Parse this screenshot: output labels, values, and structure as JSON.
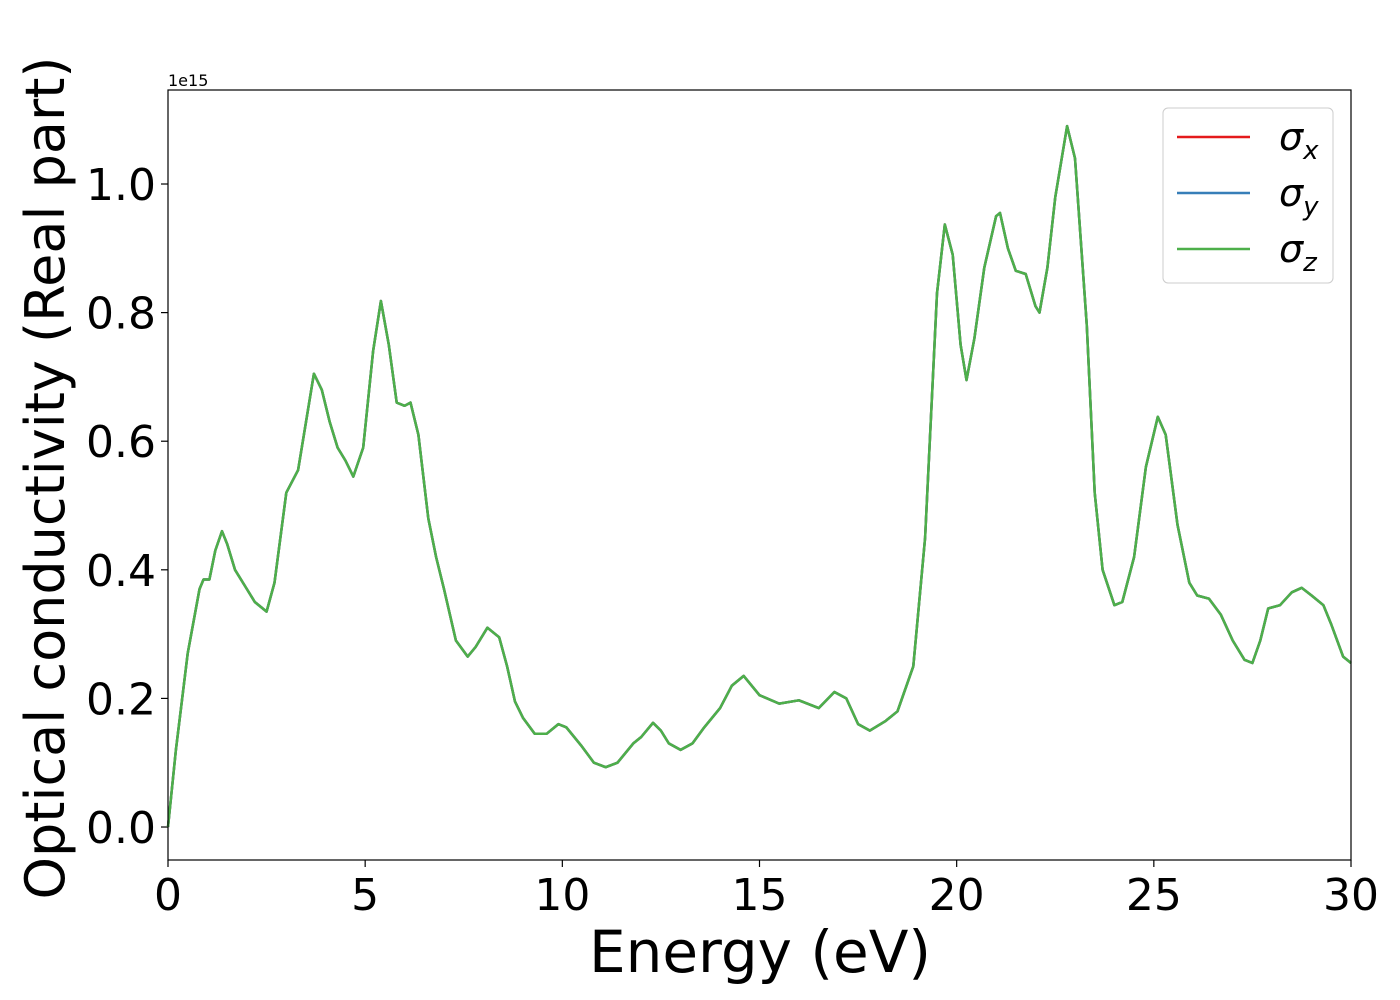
{
  "chart_data": {
    "type": "line",
    "xlabel": "Energy (eV)",
    "ylabel": "Optical conductivity (Real part)",
    "offset_label": "1e15",
    "x": [
      0,
      0.2,
      0.5,
      0.8,
      0.9,
      1.05,
      1.2,
      1.37,
      1.5,
      1.7,
      2.0,
      2.2,
      2.5,
      2.7,
      3.0,
      3.3,
      3.5,
      3.7,
      3.9,
      4.1,
      4.3,
      4.5,
      4.7,
      4.95,
      5.2,
      5.4,
      5.6,
      5.8,
      6.0,
      6.15,
      6.35,
      6.6,
      6.8,
      7.0,
      7.3,
      7.6,
      7.8,
      8.1,
      8.4,
      8.6,
      8.8,
      9.0,
      9.3,
      9.6,
      9.9,
      10.1,
      10.5,
      10.8,
      11.1,
      11.4,
      11.8,
      12.0,
      12.3,
      12.5,
      12.7,
      13.0,
      13.3,
      13.6,
      14.0,
      14.3,
      14.6,
      14.8,
      15.0,
      15.5,
      16.0,
      16.5,
      16.9,
      17.2,
      17.5,
      17.8,
      18.2,
      18.5,
      18.9,
      19.2,
      19.5,
      19.7,
      19.9,
      20.1,
      20.25,
      20.45,
      20.7,
      21.0,
      21.1,
      21.3,
      21.5,
      21.75,
      22.0,
      22.1,
      22.3,
      22.5,
      22.8,
      23.0,
      23.3,
      23.5,
      23.7,
      24.0,
      24.2,
      24.5,
      24.8,
      25.1,
      25.3,
      25.6,
      25.9,
      26.1,
      26.4,
      26.7,
      27.0,
      27.3,
      27.5,
      27.7,
      27.9,
      28.2,
      28.5,
      28.75,
      29.0,
      29.3,
      29.5,
      29.8,
      30.0
    ],
    "series": [
      {
        "name": "σx",
        "color": "#e41a1c",
        "values": [
          0,
          0.12,
          0.27,
          0.37,
          0.385,
          0.385,
          0.43,
          0.46,
          0.44,
          0.4,
          0.37,
          0.35,
          0.335,
          0.38,
          0.52,
          0.555,
          0.63,
          0.705,
          0.68,
          0.63,
          0.59,
          0.57,
          0.545,
          0.59,
          0.74,
          0.818,
          0.75,
          0.66,
          0.655,
          0.66,
          0.61,
          0.48,
          0.42,
          0.37,
          0.29,
          0.265,
          0.28,
          0.31,
          0.295,
          0.25,
          0.195,
          0.17,
          0.145,
          0.145,
          0.16,
          0.155,
          0.125,
          0.1,
          0.093,
          0.1,
          0.13,
          0.14,
          0.162,
          0.15,
          0.13,
          0.12,
          0.13,
          0.155,
          0.185,
          0.22,
          0.235,
          0.22,
          0.205,
          0.192,
          0.197,
          0.185,
          0.21,
          0.2,
          0.16,
          0.15,
          0.165,
          0.18,
          0.25,
          0.45,
          0.83,
          0.937,
          0.89,
          0.75,
          0.695,
          0.76,
          0.87,
          0.95,
          0.955,
          0.9,
          0.865,
          0.86,
          0.81,
          0.8,
          0.87,
          0.98,
          1.09,
          1.04,
          0.78,
          0.52,
          0.4,
          0.345,
          0.35,
          0.42,
          0.56,
          0.638,
          0.61,
          0.47,
          0.38,
          0.36,
          0.355,
          0.33,
          0.29,
          0.26,
          0.255,
          0.29,
          0.34,
          0.345,
          0.365,
          0.372,
          0.36,
          0.345,
          0.315,
          0.265,
          0.255
        ]
      },
      {
        "name": "σy",
        "color": "#377eb8",
        "values": [
          0,
          0.12,
          0.27,
          0.37,
          0.385,
          0.385,
          0.43,
          0.46,
          0.44,
          0.4,
          0.37,
          0.35,
          0.335,
          0.38,
          0.52,
          0.555,
          0.63,
          0.705,
          0.68,
          0.63,
          0.59,
          0.57,
          0.545,
          0.59,
          0.74,
          0.818,
          0.75,
          0.66,
          0.655,
          0.66,
          0.61,
          0.48,
          0.42,
          0.37,
          0.29,
          0.265,
          0.28,
          0.31,
          0.295,
          0.25,
          0.195,
          0.17,
          0.145,
          0.145,
          0.16,
          0.155,
          0.125,
          0.1,
          0.093,
          0.1,
          0.13,
          0.14,
          0.162,
          0.15,
          0.13,
          0.12,
          0.13,
          0.155,
          0.185,
          0.22,
          0.235,
          0.22,
          0.205,
          0.192,
          0.197,
          0.185,
          0.21,
          0.2,
          0.16,
          0.15,
          0.165,
          0.18,
          0.25,
          0.45,
          0.83,
          0.937,
          0.89,
          0.75,
          0.695,
          0.76,
          0.87,
          0.95,
          0.955,
          0.9,
          0.865,
          0.86,
          0.81,
          0.8,
          0.87,
          0.98,
          1.09,
          1.04,
          0.78,
          0.52,
          0.4,
          0.345,
          0.35,
          0.42,
          0.56,
          0.638,
          0.61,
          0.47,
          0.38,
          0.36,
          0.355,
          0.33,
          0.29,
          0.26,
          0.255,
          0.29,
          0.34,
          0.345,
          0.365,
          0.372,
          0.36,
          0.345,
          0.315,
          0.265,
          0.255
        ]
      },
      {
        "name": "σz",
        "color": "#4daf4a",
        "values": [
          0,
          0.12,
          0.27,
          0.37,
          0.385,
          0.385,
          0.43,
          0.46,
          0.44,
          0.4,
          0.37,
          0.35,
          0.335,
          0.38,
          0.52,
          0.555,
          0.63,
          0.705,
          0.68,
          0.63,
          0.59,
          0.57,
          0.545,
          0.59,
          0.74,
          0.818,
          0.75,
          0.66,
          0.655,
          0.66,
          0.61,
          0.48,
          0.42,
          0.37,
          0.29,
          0.265,
          0.28,
          0.31,
          0.295,
          0.25,
          0.195,
          0.17,
          0.145,
          0.145,
          0.16,
          0.155,
          0.125,
          0.1,
          0.093,
          0.1,
          0.13,
          0.14,
          0.162,
          0.15,
          0.13,
          0.12,
          0.13,
          0.155,
          0.185,
          0.22,
          0.235,
          0.22,
          0.205,
          0.192,
          0.197,
          0.185,
          0.21,
          0.2,
          0.16,
          0.15,
          0.165,
          0.18,
          0.25,
          0.45,
          0.83,
          0.937,
          0.89,
          0.75,
          0.695,
          0.76,
          0.87,
          0.95,
          0.955,
          0.9,
          0.865,
          0.86,
          0.81,
          0.8,
          0.87,
          0.98,
          1.09,
          1.04,
          0.78,
          0.52,
          0.4,
          0.345,
          0.35,
          0.42,
          0.56,
          0.638,
          0.61,
          0.47,
          0.38,
          0.36,
          0.355,
          0.33,
          0.29,
          0.26,
          0.255,
          0.29,
          0.34,
          0.345,
          0.365,
          0.372,
          0.36,
          0.345,
          0.315,
          0.265,
          0.255
        ]
      }
    ],
    "xlim": [
      0,
      30
    ],
    "xticks": [
      0,
      5,
      10,
      15,
      20,
      25,
      30
    ],
    "ylim": [
      -0.0513,
      1.1462
    ],
    "yticks": [
      {
        "value": 0,
        "label": "0.0"
      },
      0.2,
      0.4,
      0.6,
      0.8,
      {
        "value": 1,
        "label": "1.0"
      }
    ],
    "grid": false,
    "legend": "upper right"
  }
}
